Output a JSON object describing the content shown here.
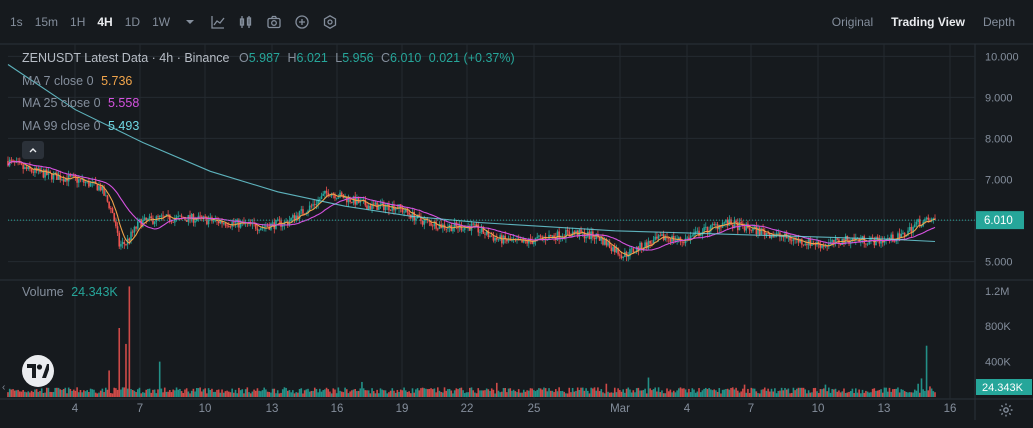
{
  "toolbar": {
    "timeframes": [
      {
        "label": "1s",
        "active": false
      },
      {
        "label": "15m",
        "active": false
      },
      {
        "label": "1H",
        "active": false
      },
      {
        "label": "4H",
        "active": true
      },
      {
        "label": "1D",
        "active": false
      },
      {
        "label": "1W",
        "active": false
      }
    ],
    "icons": [
      "caret-down-icon",
      "line-chart-icon",
      "indicators-icon",
      "camera-icon",
      "plus-circle-icon",
      "settings-hex-icon"
    ]
  },
  "views": [
    {
      "label": "Original",
      "active": false
    },
    {
      "label": "Trading View",
      "active": true
    },
    {
      "label": "Depth",
      "active": false
    }
  ],
  "legend": {
    "symbol": "ZENUSDT Latest Data · 4h · Binance",
    "ohlc": [
      {
        "key": "O",
        "value": "5.987"
      },
      {
        "key": "H",
        "value": "6.021"
      },
      {
        "key": "L",
        "value": "5.956"
      },
      {
        "key": "C",
        "value": "6.010"
      }
    ],
    "change": "0.021 (+0.37%)",
    "ma": [
      {
        "label": "MA 7 close 0",
        "value": "5.736",
        "color": "#f0a44b"
      },
      {
        "label": "MA 25 close 0",
        "value": "5.558",
        "color": "#d652e0"
      },
      {
        "label": "MA 99 close 0",
        "value": "5.493",
        "color": "#6fd8e4"
      }
    ],
    "volume_label": "Volume",
    "volume_value": "24.343K"
  },
  "colors": {
    "up": "#26a69a",
    "down": "#ef5350",
    "background": "#161a1e",
    "grid": "#242a30",
    "text": "#848e9c"
  },
  "chart_data": {
    "type": "candlestick",
    "price_axis": {
      "ticks": [
        "10.000",
        "9.000",
        "8.000",
        "7.000",
        "5.000"
      ],
      "ylim": [
        4.6,
        10.3
      ],
      "current_price": "6.010"
    },
    "volume_axis": {
      "ticks": [
        "1.2M",
        "800K",
        "400K"
      ],
      "current_volume": "24.343K",
      "ylim": [
        0,
        1300000
      ]
    },
    "x_ticks": [
      "4",
      "7",
      "10",
      "13",
      "16",
      "19",
      "22",
      "25",
      "Mar",
      "4",
      "7",
      "10",
      "13",
      "16"
    ],
    "price_path": [
      [
        0,
        7.45
      ],
      [
        10,
        7.25
      ],
      [
        25,
        7.1
      ],
      [
        40,
        7.0
      ],
      [
        55,
        6.8
      ],
      [
        62,
        6.2
      ],
      [
        66,
        5.4
      ],
      [
        70,
        5.45
      ],
      [
        78,
        5.95
      ],
      [
        90,
        6.05
      ],
      [
        110,
        6.05
      ],
      [
        130,
        5.95
      ],
      [
        150,
        5.85
      ],
      [
        165,
        5.95
      ],
      [
        180,
        6.35
      ],
      [
        190,
        6.7
      ],
      [
        200,
        6.55
      ],
      [
        215,
        6.35
      ],
      [
        230,
        6.35
      ],
      [
        245,
        6.0
      ],
      [
        260,
        5.85
      ],
      [
        275,
        5.85
      ],
      [
        290,
        5.55
      ],
      [
        305,
        5.45
      ],
      [
        320,
        5.6
      ],
      [
        335,
        5.7
      ],
      [
        350,
        5.6
      ],
      [
        365,
        5.15
      ],
      [
        375,
        5.35
      ],
      [
        390,
        5.6
      ],
      [
        400,
        5.5
      ],
      [
        410,
        5.7
      ],
      [
        425,
        5.95
      ],
      [
        440,
        5.8
      ],
      [
        455,
        5.65
      ],
      [
        470,
        5.5
      ],
      [
        485,
        5.4
      ],
      [
        500,
        5.55
      ],
      [
        515,
        5.5
      ],
      [
        530,
        5.6
      ],
      [
        540,
        5.95
      ],
      [
        550,
        6.01
      ]
    ],
    "ma99_path": [
      [
        0,
        9.8
      ],
      [
        40,
        8.7
      ],
      [
        80,
        7.9
      ],
      [
        120,
        7.2
      ],
      [
        160,
        6.7
      ],
      [
        200,
        6.35
      ],
      [
        240,
        6.1
      ],
      [
        280,
        5.95
      ],
      [
        320,
        5.85
      ],
      [
        360,
        5.75
      ],
      [
        400,
        5.7
      ],
      [
        440,
        5.65
      ],
      [
        480,
        5.6
      ],
      [
        520,
        5.55
      ],
      [
        550,
        5.49
      ]
    ],
    "volume_spikes": [
      [
        60,
        300000
      ],
      [
        66,
        780000
      ],
      [
        70,
        600000
      ],
      [
        72,
        1250000
      ],
      [
        90,
        400000
      ],
      [
        210,
        170000
      ],
      [
        245,
        100000
      ],
      [
        290,
        160000
      ],
      [
        355,
        150000
      ],
      [
        380,
        220000
      ],
      [
        437,
        140000
      ],
      [
        485,
        140000
      ],
      [
        540,
        150000
      ],
      [
        542,
        210000
      ],
      [
        545,
        580000
      ],
      [
        547,
        120000
      ]
    ]
  }
}
